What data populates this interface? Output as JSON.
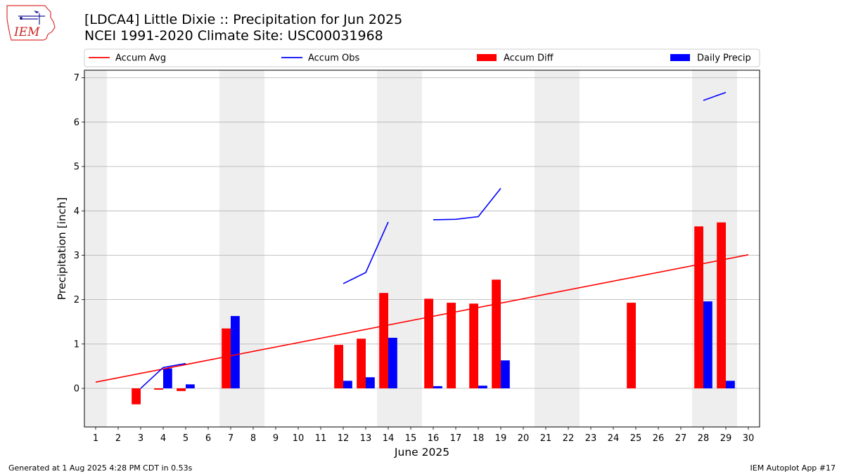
{
  "header": {
    "title_line1": "[LDCA4] Little Dixie :: Precipitation for Jun 2025",
    "title_line2": "NCEI 1991-2020 Climate Site: USC00031968",
    "logo_text": "IEM"
  },
  "footer": {
    "generated": "Generated at 1 Aug 2025 4:28 PM CDT in 0.53s",
    "app": "IEM Autoplot App #17"
  },
  "colors": {
    "accum_avg": "#ff0000",
    "accum_obs": "#0000ff",
    "accum_diff": "#ff0000",
    "daily_precip": "#0000ff",
    "weekend_shade": "#eeeeee",
    "grid": "#b0b0b0"
  },
  "chart_data": {
    "type": "bar",
    "xlabel": "June 2025",
    "ylabel": "Precipitation [inch]",
    "xlim": [
      0.5,
      30.5
    ],
    "ylim": [
      -0.87,
      7.17
    ],
    "yticks": [
      0,
      1,
      2,
      3,
      4,
      5,
      6,
      7
    ],
    "xticks": [
      1,
      2,
      3,
      4,
      5,
      6,
      7,
      8,
      9,
      10,
      11,
      12,
      13,
      14,
      15,
      16,
      17,
      18,
      19,
      20,
      21,
      22,
      23,
      24,
      25,
      26,
      27,
      28,
      29,
      30
    ],
    "grid": "horizontal",
    "legend_position": "top",
    "shaded_weekend_days": [
      1,
      7,
      8,
      14,
      15,
      21,
      22,
      28,
      29
    ],
    "series": [
      {
        "name": "Accum Avg",
        "kind": "line",
        "points": [
          [
            1,
            0.14
          ],
          [
            30,
            3.01
          ]
        ]
      },
      {
        "name": "Accum Obs",
        "kind": "line",
        "segments": [
          [
            [
              3,
              0.0
            ],
            [
              4,
              0.47
            ],
            [
              5,
              0.56
            ]
          ],
          [
            [
              12,
              2.36
            ],
            [
              13,
              2.61
            ],
            [
              14,
              3.75
            ]
          ],
          [
            [
              16,
              3.8
            ],
            [
              17,
              3.81
            ],
            [
              18,
              3.87
            ],
            [
              19,
              4.51
            ]
          ],
          [
            [
              28,
              6.49
            ],
            [
              29,
              6.67
            ]
          ]
        ]
      },
      {
        "name": "Accum Diff",
        "kind": "bar",
        "x": [
          3,
          4,
          5,
          7,
          12,
          13,
          14,
          16,
          17,
          18,
          19,
          25,
          28,
          29
        ],
        "values": [
          -0.36,
          -0.03,
          -0.06,
          1.35,
          0.98,
          1.12,
          2.15,
          2.02,
          1.93,
          1.91,
          2.45,
          1.93,
          3.65,
          3.74
        ]
      },
      {
        "name": "Daily Precip",
        "kind": "bar",
        "x": [
          4,
          5,
          7,
          12,
          13,
          14,
          16,
          18,
          19,
          28,
          29
        ],
        "values": [
          0.45,
          0.09,
          1.63,
          0.17,
          0.25,
          1.14,
          0.05,
          0.06,
          0.63,
          1.96,
          0.17
        ]
      }
    ]
  }
}
